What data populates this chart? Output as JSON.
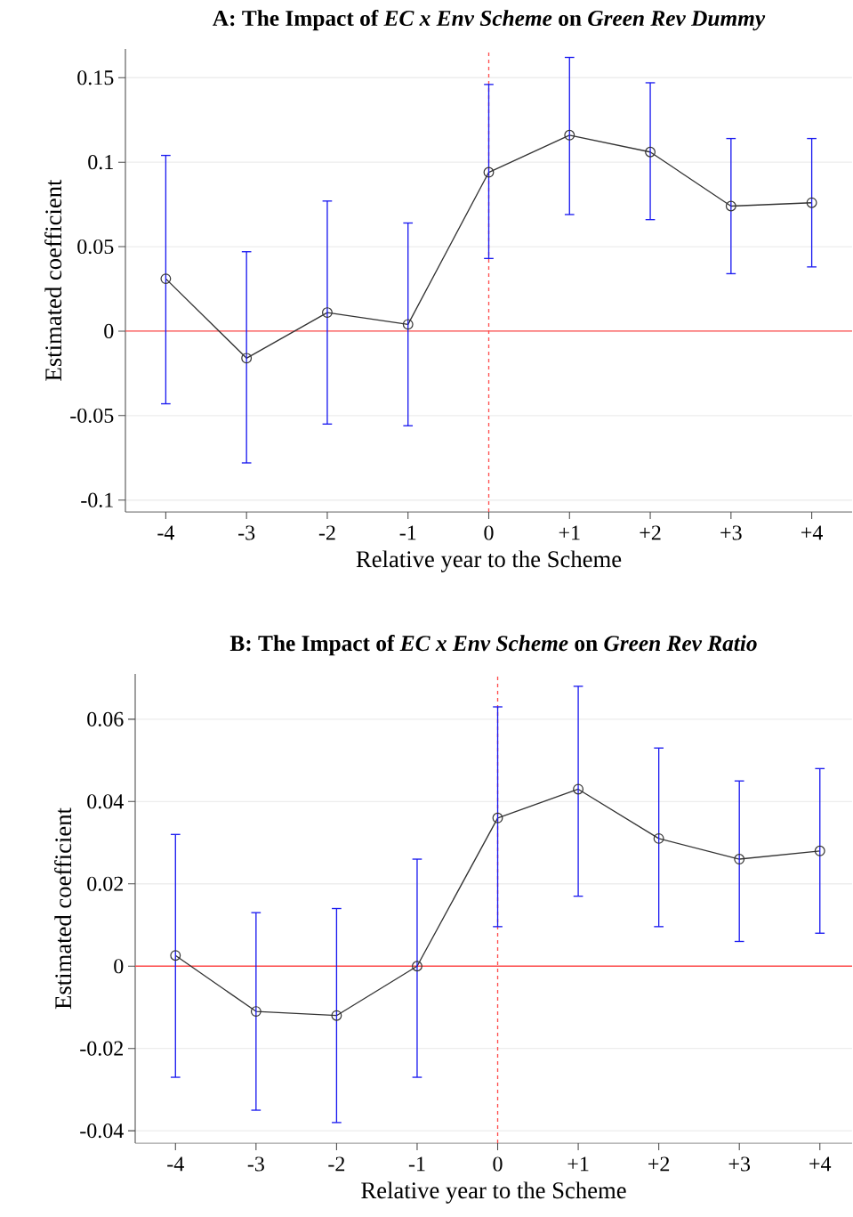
{
  "chart_data": [
    {
      "type": "line",
      "title": "A: The Impact of *EC x Env Scheme* on *Green Rev Dummy*",
      "xlabel": "Relative year to the Scheme",
      "ylabel": "Estimated coefficient",
      "x": [
        -4,
        -3,
        -2,
        -1,
        0,
        1,
        2,
        3,
        4
      ],
      "series": [
        {
          "color": "#333333",
          "values": [
            0.031,
            -0.016,
            0.011,
            0.004,
            0.094,
            0.116,
            0.106,
            0.074,
            0.076
          ],
          "errors": [
            [
              -0.043,
              0.104
            ],
            [
              -0.078,
              0.047
            ],
            [
              -0.055,
              0.077
            ],
            [
              -0.056,
              0.064
            ],
            [
              0.043,
              0.146
            ],
            [
              0.069,
              0.162
            ],
            [
              0.066,
              0.147
            ],
            [
              0.034,
              0.114
            ],
            [
              0.038,
              0.114
            ]
          ]
        }
      ],
      "xlim": [
        -4.5,
        4.5
      ],
      "ylim": [
        -0.107,
        0.167
      ],
      "xticks": [
        -4,
        -3,
        -2,
        -1,
        0,
        {
          "value": 1,
          "label": "+1"
        },
        {
          "value": 2,
          "label": "+2"
        },
        {
          "value": 3,
          "label": "+3"
        },
        {
          "value": 4,
          "label": "+4"
        }
      ],
      "yticks": [
        0.15,
        0.1,
        0.05,
        0,
        -0.05,
        -0.1
      ],
      "ref_lines": [
        {
          "axis": "y",
          "value": 0,
          "color": "#ff4d4d",
          "line_style": "solid"
        },
        {
          "axis": "x",
          "value": 0,
          "color": "#ff4d4d",
          "line_style": "dashed"
        }
      ],
      "grid": "y",
      "marker": "circle",
      "line_style": "solid"
    },
    {
      "type": "line",
      "title": "B: The Impact of *EC x Env Scheme* on *Green Rev Ratio*",
      "xlabel": "Relative year to the Scheme",
      "ylabel": "Estimated coefficient",
      "x": [
        -4,
        -3,
        -2,
        -1,
        0,
        1,
        2,
        3,
        4
      ],
      "series": [
        {
          "color": "#333333",
          "values": [
            0.0026,
            -0.011,
            -0.012,
            0.0,
            0.036,
            0.043,
            0.031,
            0.026,
            0.028
          ],
          "errors": [
            [
              -0.027,
              0.032
            ],
            [
              -0.035,
              0.013
            ],
            [
              -0.038,
              0.014
            ],
            [
              -0.027,
              0.026
            ],
            [
              0.0096,
              0.063
            ],
            [
              0.017,
              0.068
            ],
            [
              0.0096,
              0.053
            ],
            [
              0.006,
              0.045
            ],
            [
              0.008,
              0.048
            ]
          ]
        }
      ],
      "xlim": [
        -4.5,
        4.4
      ],
      "ylim": [
        -0.043,
        0.071
      ],
      "xticks": [
        -4,
        -3,
        -2,
        -1,
        0,
        {
          "value": 1,
          "label": "+1"
        },
        {
          "value": 2,
          "label": "+2"
        },
        {
          "value": 3,
          "label": "+3"
        },
        {
          "value": 4,
          "label": "+4"
        }
      ],
      "yticks": [
        0.06,
        0.04,
        0.02,
        0,
        -0.02,
        -0.04
      ],
      "ref_lines": [
        {
          "axis": "y",
          "value": 0,
          "color": "#ff4d4d",
          "line_style": "solid"
        },
        {
          "axis": "x",
          "value": 0,
          "color": "#ff4d4d",
          "line_style": "dashed"
        }
      ],
      "grid": "y",
      "marker": "circle",
      "line_style": "solid"
    }
  ]
}
